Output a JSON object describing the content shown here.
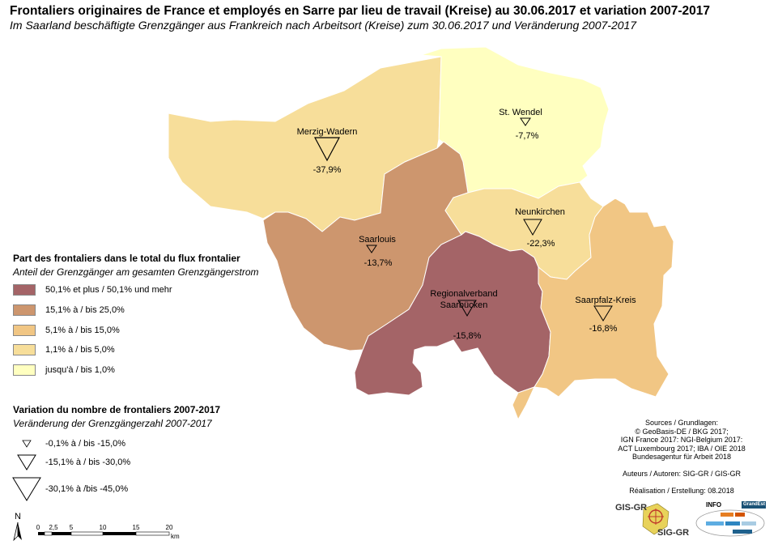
{
  "title": "Frontaliers originaires de France et employés en Sarre par lieu de travail (Kreise) au 30.06.2017 et variation 2007-2017",
  "subtitle": "Im Saarland beschäftigte Grenzgänger aus Frankreich nach Arbeitsort (Kreise) zum 30.06.2017 und Veränderung 2007-2017",
  "districts": [
    {
      "name": "Merzig-Wadern",
      "change": "-37,9%",
      "class": "1,1% à / bis 5,0%",
      "color": "#f7de9a"
    },
    {
      "name": "St. Wendel",
      "change": "-7,7%",
      "class": "jusqu'à / bis 1,0%",
      "color": "#ffffc0"
    },
    {
      "name": "Neunkirchen",
      "change": "-22,3%",
      "class": "1,1% à / bis 5,0%",
      "color": "#f7de9a"
    },
    {
      "name": "Saarlouis",
      "change": "-13,7%",
      "class": "15,1% à / bis 25,0%",
      "color": "#cd966e"
    },
    {
      "name": "Regionalverband Saarbücken",
      "name_line1": "Regionalverband",
      "name_line2": "Saarbücken",
      "change": "-15,8%",
      "class": "50,1% et plus / 50,1% und mehr",
      "color": "#a46467"
    },
    {
      "name": "Saarpfalz-Kreis",
      "change": "-16,8%",
      "class": "5,1% à / bis 15,0%",
      "color": "#f1c684"
    }
  ],
  "legend_share": {
    "title": "Part des frontaliers dans le total du flux frontalier",
    "subtitle": "Anteil der Grenzgänger am gesamten Grenzgängerstrom",
    "items": [
      {
        "label": "50,1% et plus / 50,1% und mehr",
        "color": "#a46467"
      },
      {
        "label": "15,1% à / bis 25,0%",
        "color": "#cd966e"
      },
      {
        "label": "5,1% à / bis 15,0%",
        "color": "#f1c684"
      },
      {
        "label": "1,1% à / bis 5,0%",
        "color": "#f7de9a"
      },
      {
        "label": "jusqu'à / bis 1,0%",
        "color": "#ffffc0"
      }
    ]
  },
  "legend_change": {
    "title": "Variation du nombre de frontaliers 2007-2017",
    "subtitle": "Veränderung der Grenzgängerzahl 2007-2017",
    "items": [
      {
        "label": "-0,1% à / bis -15,0%"
      },
      {
        "label": "-15,1% à / bis -30,0%"
      },
      {
        "label": "-30,1% à /bis -45,0%"
      }
    ]
  },
  "scale": {
    "ticks": [
      "0",
      "2,5",
      "5",
      "10",
      "15",
      "20"
    ],
    "unit": "km",
    "north": "N"
  },
  "sources": {
    "lines": [
      "Sources / Grundlagen:",
      "© GeoBasis-DE / BKG 2017;",
      "IGN France 2017: NGI-Belgium 2017:",
      "ACT Luxembourg 2017; IBA / OIE 2018",
      "Bundesagentur für Arbeit 2018"
    ],
    "authors": "Auteurs / Autoren: SIG-GR / GIS-GR",
    "realisation": "Réalisation / Erstellung: 08.2018"
  },
  "logos": {
    "gis_top": "GIS-GR",
    "gis_bottom": "SIG-GR",
    "info": "INFO",
    "grande": "GrandEst"
  }
}
